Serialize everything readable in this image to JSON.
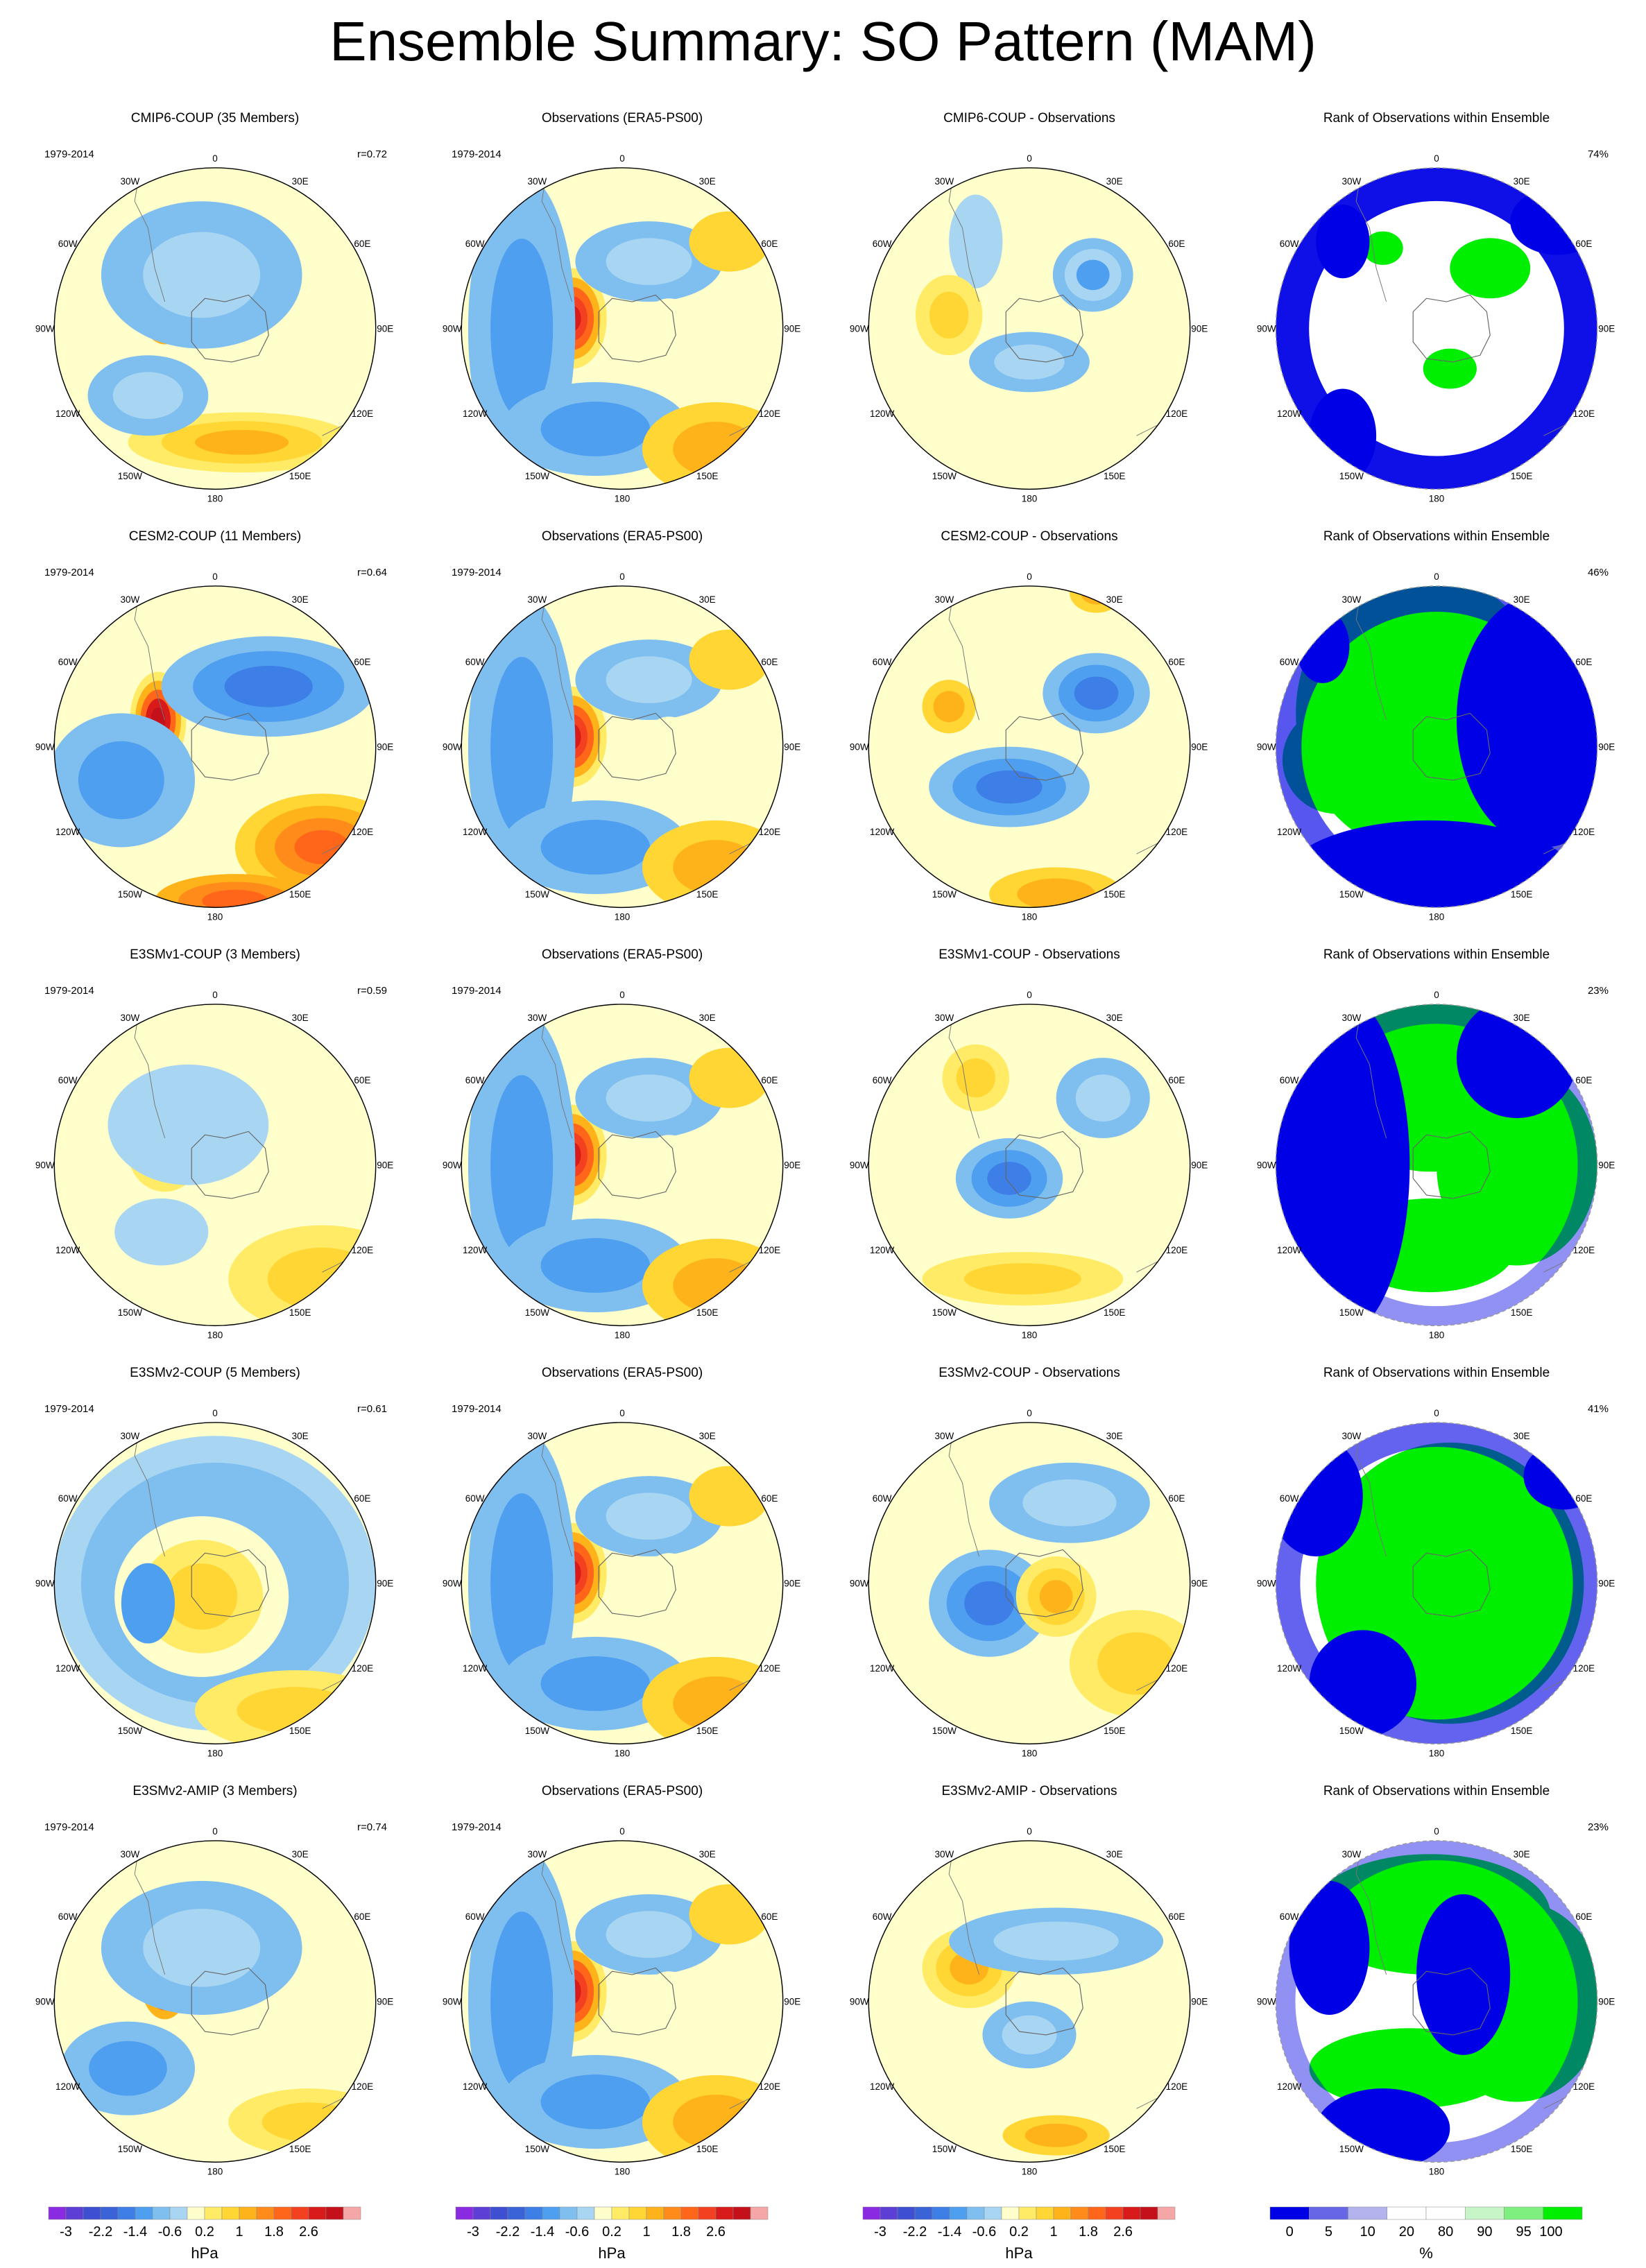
{
  "title": "Ensemble Summary: SO Pattern (MAM)",
  "period": "1979-2014",
  "lon_labels": [
    "0",
    "30E",
    "60E",
    "90E",
    "120E",
    "150E",
    "180",
    "150W",
    "120W",
    "90W",
    "60W",
    "30W"
  ],
  "rows": [
    {
      "model": "CMIP6-COUP (35 Members)",
      "obs": "Observations (ERA5-PS00)",
      "diff": "CMIP6-COUP - Observations",
      "rank": "Rank of Observations within Ensemble",
      "corr": "r=0.72",
      "pct": "74%"
    },
    {
      "model": "CESM2-COUP (11 Members)",
      "obs": "Observations (ERA5-PS00)",
      "diff": "CESM2-COUP - Observations",
      "rank": "Rank of Observations within Ensemble",
      "corr": "r=0.64",
      "pct": "46%"
    },
    {
      "model": "E3SMv1-COUP (3 Members)",
      "obs": "Observations (ERA5-PS00)",
      "diff": "E3SMv1-COUP - Observations",
      "rank": "Rank of Observations within Ensemble",
      "corr": "r=0.59",
      "pct": "23%"
    },
    {
      "model": "E3SMv2-COUP (5 Members)",
      "obs": "Observations (ERA5-PS00)",
      "diff": "E3SMv2-COUP - Observations",
      "rank": "Rank of Observations within Ensemble",
      "corr": "r=0.61",
      "pct": "41%"
    },
    {
      "model": "E3SMv2-AMIP (3 Members)",
      "obs": "Observations (ERA5-PS00)",
      "diff": "E3SMv2-AMIP - Observations",
      "rank": "Rank of Observations within Ensemble",
      "corr": "r=0.74",
      "pct": "23%"
    }
  ],
  "colorbars": {
    "pressure": {
      "unit": "hPa",
      "tick_labels": [
        "-3",
        "-2.2",
        "-1.4",
        "-0.6",
        "0.2",
        "1",
        "1.8",
        "2.6"
      ],
      "colors": [
        "#8a2be2",
        "#5e3fd6",
        "#3f4fd1",
        "#3a63d8",
        "#3d7fe6",
        "#4f9ff0",
        "#7fbff0",
        "#a8d6f2",
        "#ffffcc",
        "#ffeb66",
        "#ffd633",
        "#ffb31a",
        "#ff8c1a",
        "#ff661a",
        "#f24020",
        "#d91a1a",
        "#c4101a",
        "#f5a6a6"
      ]
    },
    "rank": {
      "unit": "%",
      "tick_labels": [
        "0",
        "5",
        "10",
        "20",
        "80",
        "90",
        "95",
        "100"
      ],
      "colors": [
        "#0000e6",
        "#6666e6",
        "#b3b3ee",
        "#ffffff",
        "#ffffff",
        "#c8f5c8",
        "#7ff07f",
        "#00ee00"
      ]
    }
  },
  "chart_data": {
    "type": "heatmap",
    "title": "Ensemble Summary: SO Pattern (MAM)",
    "projection": "south-polar stereographic",
    "period": "1979-2014",
    "panels_per_row": [
      "ensemble mean pattern",
      "observed pattern",
      "model minus observations",
      "rank of observations within ensemble"
    ],
    "rows": [
      {
        "model": "CMIP6-COUP",
        "members": 35,
        "pattern_correlation": 0.72,
        "pct_area_outside": 74
      },
      {
        "model": "CESM2-COUP",
        "members": 11,
        "pattern_correlation": 0.64,
        "pct_area_outside": 46
      },
      {
        "model": "E3SMv1-COUP",
        "members": 3,
        "pattern_correlation": 0.59,
        "pct_area_outside": 23
      },
      {
        "model": "E3SMv2-COUP",
        "members": 5,
        "pattern_correlation": 0.61,
        "pct_area_outside": 41
      },
      {
        "model": "E3SMv2-AMIP",
        "members": 3,
        "pattern_correlation": 0.74,
        "pct_area_outside": 23
      }
    ],
    "pressure_levels_hPa": [
      -3.0,
      -2.6,
      -2.2,
      -1.8,
      -1.4,
      -1.0,
      -0.6,
      -0.2,
      0.2,
      0.6,
      1.0,
      1.4,
      1.8,
      2.2,
      2.6,
      3.0
    ],
    "rank_levels_pct": [
      0,
      5,
      10,
      20,
      80,
      90,
      95,
      100
    ],
    "units": {
      "pattern": "hPa",
      "rank": "%"
    }
  }
}
